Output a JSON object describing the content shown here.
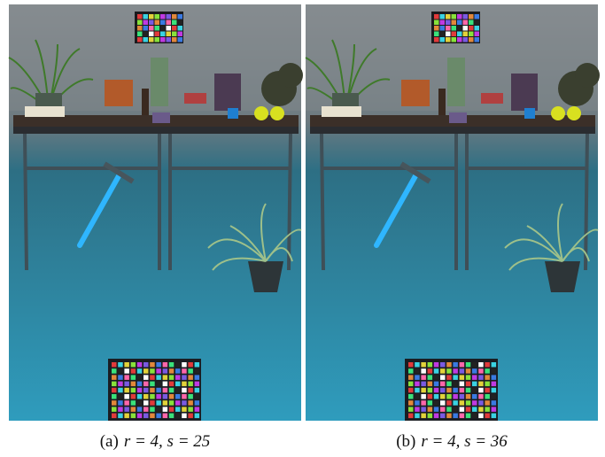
{
  "figure": {
    "panels": [
      {
        "label": "(a)",
        "caption": "r = 4, s = 25"
      },
      {
        "label": "(b)",
        "caption": "r = 4, s = 36"
      }
    ]
  }
}
